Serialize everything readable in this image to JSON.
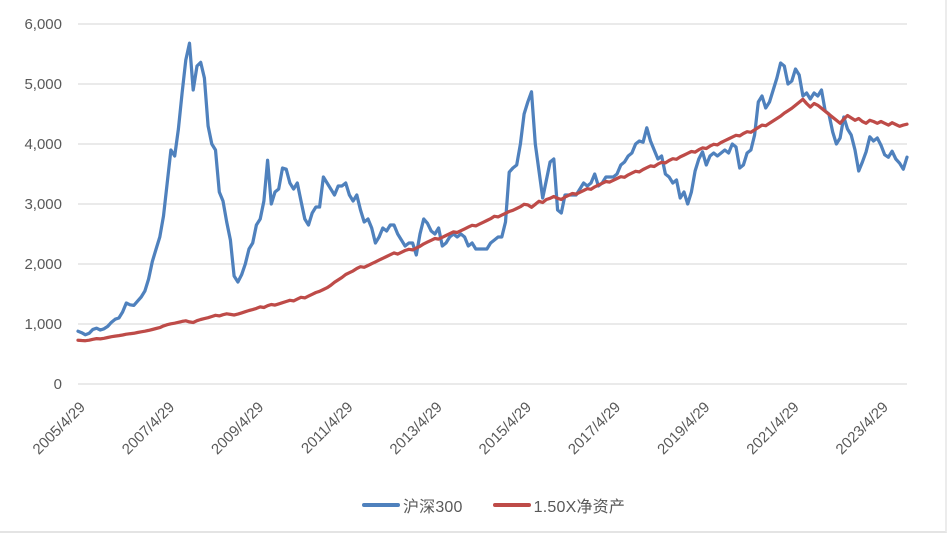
{
  "chart_data": {
    "type": "line",
    "title": "",
    "x_axis": {
      "tick_labels": [
        "2005/4/29",
        "2007/4/29",
        "2009/4/29",
        "2011/4/29",
        "2013/4/29",
        "2015/4/29",
        "2017/4/29",
        "2019/4/29",
        "2021/4/29",
        "2023/4/29"
      ],
      "tick_point_indices": [
        0,
        24,
        48,
        72,
        96,
        120,
        144,
        168,
        192,
        216
      ],
      "label_rotation_deg": -45
    },
    "y_axis": {
      "range": [
        0,
        6000
      ],
      "tick_values": [
        0,
        1000,
        2000,
        3000,
        4000,
        5000,
        6000
      ],
      "tick_labels": [
        "0",
        "1,000",
        "2,000",
        "3,000",
        "4,000",
        "5,000",
        "6,000"
      ],
      "grid": true
    },
    "legend_position": "bottom",
    "series": [
      {
        "name": "沪深300",
        "color": "#4F81BD",
        "values": [
          880,
          855,
          820,
          845,
          910,
          930,
          900,
          920,
          960,
          1030,
          1080,
          1100,
          1200,
          1350,
          1320,
          1310,
          1380,
          1450,
          1550,
          1750,
          2040,
          2250,
          2450,
          2800,
          3350,
          3900,
          3800,
          4250,
          4850,
          5400,
          5680,
          4900,
          5300,
          5360,
          5100,
          4300,
          4000,
          3900,
          3200,
          3050,
          2700,
          2400,
          1800,
          1700,
          1820,
          2000,
          2250,
          2350,
          2650,
          2750,
          3050,
          3730,
          3000,
          3200,
          3250,
          3600,
          3580,
          3350,
          3250,
          3350,
          3050,
          2750,
          2650,
          2850,
          2950,
          2950,
          3450,
          3350,
          3250,
          3150,
          3300,
          3300,
          3350,
          3150,
          3050,
          3150,
          2900,
          2700,
          2750,
          2600,
          2350,
          2450,
          2600,
          2550,
          2650,
          2650,
          2500,
          2400,
          2300,
          2350,
          2350,
          2150,
          2500,
          2750,
          2680,
          2550,
          2500,
          2600,
          2300,
          2350,
          2450,
          2500,
          2450,
          2500,
          2450,
          2300,
          2350,
          2250,
          2250,
          2250,
          2250,
          2350,
          2400,
          2450,
          2450,
          2700,
          3530,
          3600,
          3650,
          4000,
          4500,
          4700,
          4870,
          4000,
          3550,
          3100,
          3400,
          3700,
          3750,
          2900,
          2850,
          3150,
          3150,
          3150,
          3150,
          3250,
          3350,
          3300,
          3350,
          3500,
          3300,
          3350,
          3450,
          3450,
          3450,
          3500,
          3650,
          3700,
          3800,
          3850,
          4000,
          4050,
          4030,
          4270,
          4050,
          3900,
          3750,
          3800,
          3500,
          3450,
          3350,
          3400,
          3100,
          3200,
          3000,
          3200,
          3550,
          3750,
          3870,
          3650,
          3800,
          3850,
          3800,
          3850,
          3900,
          3850,
          4000,
          3950,
          3600,
          3650,
          3850,
          3900,
          4150,
          4700,
          4800,
          4600,
          4700,
          4900,
          5100,
          5350,
          5300,
          5000,
          5050,
          5250,
          5150,
          4800,
          4850,
          4750,
          4850,
          4800,
          4900,
          4550,
          4500,
          4200,
          4000,
          4100,
          4450,
          4250,
          4150,
          3900,
          3550,
          3700,
          3870,
          4120,
          4050,
          4100,
          3980,
          3820,
          3780,
          3880,
          3750,
          3680,
          3580,
          3780
        ]
      },
      {
        "name": "1.50X净资产",
        "color": "#BE4B48",
        "values": [
          730,
          725,
          722,
          730,
          745,
          757,
          752,
          762,
          775,
          788,
          798,
          806,
          816,
          830,
          838,
          845,
          858,
          870,
          880,
          893,
          908,
          925,
          940,
          968,
          988,
          1003,
          1013,
          1028,
          1043,
          1053,
          1035,
          1025,
          1055,
          1075,
          1090,
          1105,
          1125,
          1145,
          1135,
          1155,
          1170,
          1160,
          1150,
          1165,
          1185,
          1205,
          1225,
          1240,
          1260,
          1285,
          1275,
          1305,
          1325,
          1315,
          1335,
          1355,
          1375,
          1395,
          1385,
          1415,
          1445,
          1435,
          1465,
          1495,
          1525,
          1545,
          1575,
          1605,
          1645,
          1695,
          1735,
          1775,
          1825,
          1855,
          1885,
          1925,
          1955,
          1945,
          1975,
          2005,
          2035,
          2065,
          2095,
          2125,
          2155,
          2185,
          2165,
          2195,
          2225,
          2245,
          2235,
          2265,
          2295,
          2335,
          2365,
          2395,
          2425,
          2415,
          2445,
          2475,
          2505,
          2535,
          2525,
          2555,
          2585,
          2615,
          2645,
          2635,
          2665,
          2695,
          2725,
          2755,
          2795,
          2785,
          2815,
          2845,
          2875,
          2895,
          2925,
          2955,
          2995,
          2985,
          2945,
          2995,
          3045,
          3025,
          3075,
          3095,
          3125,
          3095,
          3075,
          3115,
          3145,
          3175,
          3165,
          3195,
          3225,
          3255,
          3245,
          3285,
          3315,
          3345,
          3375,
          3365,
          3395,
          3425,
          3455,
          3445,
          3485,
          3515,
          3545,
          3535,
          3575,
          3605,
          3635,
          3625,
          3665,
          3695,
          3685,
          3725,
          3755,
          3745,
          3785,
          3815,
          3845,
          3875,
          3865,
          3905,
          3935,
          3925,
          3965,
          3995,
          3985,
          4025,
          4055,
          4085,
          4115,
          4145,
          4135,
          4175,
          4205,
          4195,
          4235,
          4275,
          4315,
          4305,
          4345,
          4385,
          4425,
          4465,
          4515,
          4555,
          4595,
          4645,
          4695,
          4745,
          4675,
          4615,
          4675,
          4645,
          4595,
          4545,
          4495,
          4445,
          4395,
          4345,
          4415,
          4475,
          4435,
          4395,
          4425,
          4375,
          4345,
          4395,
          4375,
          4345,
          4375,
          4345,
          4315,
          4355,
          4325,
          4295,
          4315,
          4330
        ]
      }
    ]
  },
  "colors": {
    "background": "#FFFFFF",
    "grid": "#D6D6D6",
    "axis_text": "#595959"
  },
  "legend": {
    "hs300_label": "沪深300",
    "net_asset_label": "1.50X净资产"
  }
}
